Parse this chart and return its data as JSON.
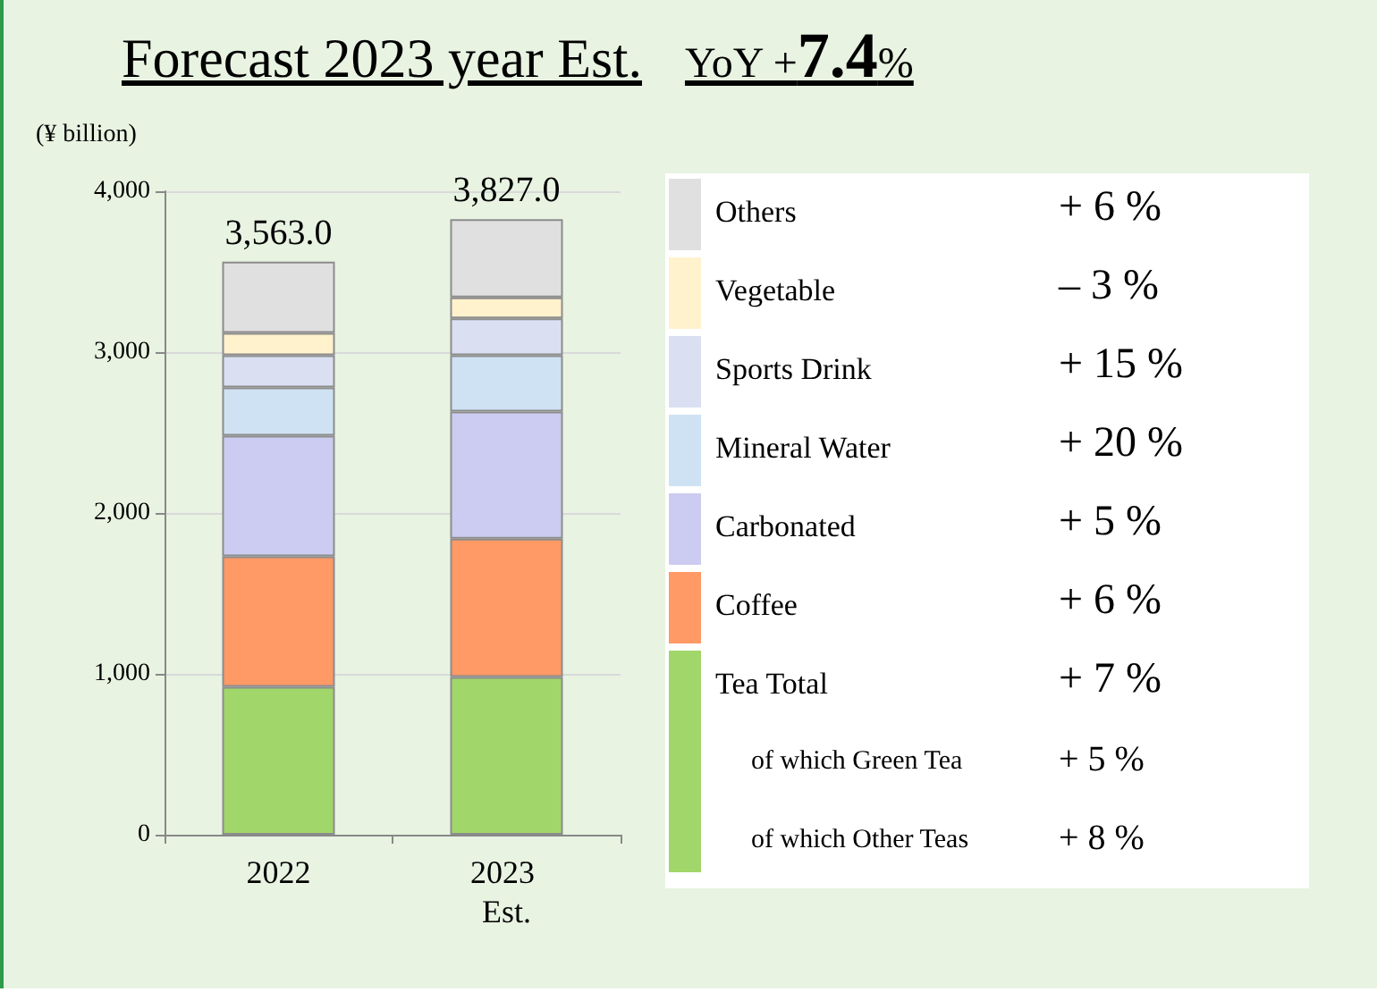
{
  "chart_data": {
    "type": "bar",
    "title": "Forecast 2023 year Est.",
    "subtitle": "YoY +7.4%",
    "ylabel": "(¥ billion)",
    "categories": [
      "2022",
      "2023 Est."
    ],
    "stacked": true,
    "series": [
      {
        "name": "Tea Total",
        "color": "#a1d66a",
        "values": [
          920,
          980
        ]
      },
      {
        "name": "Coffee",
        "color": "#ff9966",
        "values": [
          810,
          860
        ]
      },
      {
        "name": "Carbonated",
        "color": "#ccccf2",
        "values": [
          750,
          790
        ]
      },
      {
        "name": "Mineral Water",
        "color": "#cfe2f3",
        "values": [
          300,
          350
        ]
      },
      {
        "name": "Sports Drink",
        "color": "#dae0f2",
        "values": [
          200,
          230
        ]
      },
      {
        "name": "Vegetable",
        "color": "#fff2cc",
        "values": [
          140,
          130
        ]
      },
      {
        "name": "Others",
        "color": "#e0e0e0",
        "values": [
          443,
          487
        ]
      }
    ],
    "totals": [
      "3,563.0",
      "3,827.0"
    ],
    "ylim": [
      0,
      4000
    ],
    "yticks": [
      0,
      {
        "value": 1000,
        "label": "1,000"
      },
      {
        "value": 2000,
        "label": "2,000"
      },
      {
        "value": 3000,
        "label": "3,000"
      },
      {
        "value": 4000,
        "label": "4,000"
      }
    ],
    "grid": "y",
    "legend": "right",
    "annotations": [
      "+ 6 %",
      "– 3 %",
      "+ 15 %",
      "+ 20 %",
      "+ 5 %",
      "+ 6 %",
      "+ 7 %",
      "of which Green Tea",
      "+ 5 %",
      "of which Other Teas",
      "+ 8 %"
    ]
  }
}
